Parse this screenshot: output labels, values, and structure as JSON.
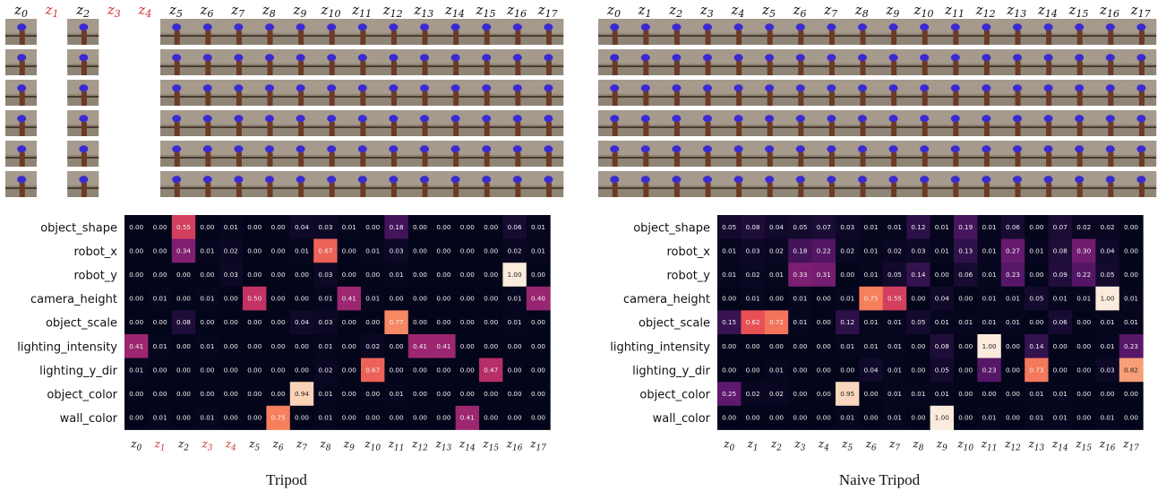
{
  "chart_data": [
    {
      "type": "heatmap",
      "title": "Tripod",
      "latents": [
        "z0",
        "z1",
        "z2",
        "z3",
        "z4",
        "z5",
        "z6",
        "z7",
        "z8",
        "z9",
        "z10",
        "z11",
        "z12",
        "z13",
        "z14",
        "z15",
        "z16",
        "z17"
      ],
      "inactive_latents": [
        "z1",
        "z3",
        "z4"
      ],
      "factors": [
        "object_shape",
        "robot_x",
        "robot_y",
        "camera_height",
        "object_scale",
        "lighting_intensity",
        "lighting_y_dir",
        "object_color",
        "wall_color"
      ],
      "values": [
        [
          0.0,
          0.0,
          0.55,
          0.0,
          0.01,
          0.0,
          0.0,
          0.04,
          0.03,
          0.01,
          0.0,
          0.18,
          0.0,
          0.0,
          0.0,
          0.0,
          0.06,
          0.01
        ],
        [
          0.0,
          0.0,
          0.34,
          0.01,
          0.02,
          0.0,
          0.0,
          0.01,
          0.67,
          0.0,
          0.01,
          0.03,
          0.0,
          0.0,
          0.0,
          0.0,
          0.02,
          0.01
        ],
        [
          0.0,
          0.0,
          0.0,
          0.0,
          0.03,
          0.0,
          0.0,
          0.0,
          0.03,
          0.0,
          0.0,
          0.01,
          0.0,
          0.0,
          0.0,
          0.0,
          1.0,
          0.0
        ],
        [
          0.0,
          0.01,
          0.0,
          0.01,
          0.0,
          0.5,
          0.0,
          0.0,
          0.01,
          0.41,
          0.01,
          0.0,
          0.0,
          0.0,
          0.0,
          0.0,
          0.01,
          0.4
        ],
        [
          0.0,
          0.0,
          0.08,
          0.0,
          0.0,
          0.0,
          0.0,
          0.04,
          0.03,
          0.0,
          0.0,
          0.77,
          0.0,
          0.0,
          0.0,
          0.0,
          0.01,
          0.0
        ],
        [
          0.41,
          0.01,
          0.0,
          0.01,
          0.0,
          0.0,
          0.0,
          0.0,
          0.01,
          0.0,
          0.02,
          0.0,
          0.41,
          0.41,
          0.0,
          0.0,
          0.0,
          0.0
        ],
        [
          0.01,
          0.0,
          0.0,
          0.0,
          0.0,
          0.0,
          0.0,
          0.0,
          0.02,
          0.0,
          0.67,
          0.0,
          0.0,
          0.0,
          0.0,
          0.47,
          0.0,
          0.0
        ],
        [
          0.0,
          0.0,
          0.0,
          0.0,
          0.0,
          0.0,
          0.0,
          0.94,
          0.01,
          0.0,
          0.0,
          0.01,
          0.0,
          0.0,
          0.0,
          0.0,
          0.0,
          0.0
        ],
        [
          0.0,
          0.01,
          0.0,
          0.01,
          0.0,
          0.0,
          0.75,
          0.0,
          0.01,
          0.0,
          0.0,
          0.0,
          0.0,
          0.0,
          0.41,
          0.0,
          0.0,
          0.0
        ]
      ]
    },
    {
      "type": "heatmap",
      "title": "Naive Tripod",
      "latents": [
        "z0",
        "z1",
        "z2",
        "z3",
        "z4",
        "z5",
        "z6",
        "z7",
        "z8",
        "z9",
        "z10",
        "z11",
        "z12",
        "z13",
        "z14",
        "z15",
        "z16",
        "z17"
      ],
      "inactive_latents": [],
      "factors": [
        "object_shape",
        "robot_x",
        "robot_y",
        "camera_height",
        "object_scale",
        "lighting_intensity",
        "lighting_y_dir",
        "object_color",
        "wall_color"
      ],
      "values": [
        [
          0.05,
          0.08,
          0.04,
          0.05,
          0.07,
          0.03,
          0.01,
          0.01,
          0.12,
          0.01,
          0.19,
          0.01,
          0.06,
          0.0,
          0.07,
          0.02,
          0.02,
          0.0
        ],
        [
          0.01,
          0.03,
          0.02,
          0.18,
          0.22,
          0.02,
          0.01,
          0.02,
          0.03,
          0.01,
          0.13,
          0.01,
          0.27,
          0.01,
          0.08,
          0.3,
          0.04,
          0.0
        ],
        [
          0.01,
          0.02,
          0.01,
          0.33,
          0.31,
          0.0,
          0.01,
          0.05,
          0.14,
          0.0,
          0.06,
          0.01,
          0.23,
          0.0,
          0.09,
          0.22,
          0.05,
          0.0
        ],
        [
          0.0,
          0.01,
          0.0,
          0.01,
          0.0,
          0.01,
          0.75,
          0.55,
          0.0,
          0.04,
          0.0,
          0.01,
          0.01,
          0.05,
          0.01,
          0.01,
          1.0,
          0.01
        ],
        [
          0.15,
          0.62,
          0.72,
          0.01,
          0.0,
          0.12,
          0.01,
          0.01,
          0.05,
          0.01,
          0.01,
          0.01,
          0.01,
          0.0,
          0.06,
          0.0,
          0.01,
          0.01
        ],
        [
          0.0,
          0.0,
          0.0,
          0.0,
          0.0,
          0.01,
          0.01,
          0.01,
          0.0,
          0.08,
          0.0,
          1.0,
          0.0,
          0.14,
          0.0,
          0.0,
          0.01,
          0.23
        ],
        [
          0.0,
          0.0,
          0.01,
          0.0,
          0.0,
          0.0,
          0.04,
          0.01,
          0.0,
          0.05,
          0.0,
          0.23,
          0.0,
          0.73,
          0.0,
          0.0,
          0.03,
          0.82
        ],
        [
          0.25,
          0.02,
          0.02,
          0.0,
          0.0,
          0.95,
          0.0,
          0.01,
          0.01,
          0.01,
          0.0,
          0.0,
          0.0,
          0.01,
          0.01,
          0.0,
          0.0,
          0.0
        ],
        [
          0.0,
          0.0,
          0.0,
          0.0,
          0.0,
          0.01,
          0.0,
          0.01,
          0.0,
          1.0,
          0.0,
          0.01,
          0.0,
          0.01,
          0.01,
          0.0,
          0.01,
          0.0
        ]
      ]
    }
  ],
  "colors": {
    "inactive_latent": "#d0312d",
    "active_latent": "#111111",
    "heat_low": "#03051a",
    "heat_high": "#faebdd"
  }
}
